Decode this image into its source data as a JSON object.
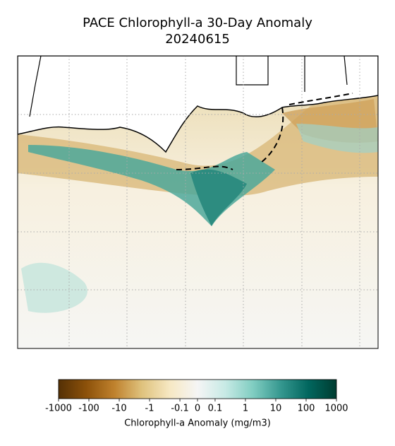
{
  "chart_data": {
    "type": "map",
    "title": "PACE Chlorophyll-a 30-Day Anomaly",
    "subtitle": "20240615",
    "colorbar": {
      "label": "Chlorophyll-a Anomaly (mg/m3)",
      "colormap": "BrBG",
      "scale": "symlog",
      "linthresh": 0.1,
      "lim": [
        -1000,
        1000
      ],
      "ticks": [
        -1000,
        -100,
        -10,
        -1,
        -0.1,
        0,
        0.1,
        1,
        10,
        100,
        1000
      ]
    }
  }
}
